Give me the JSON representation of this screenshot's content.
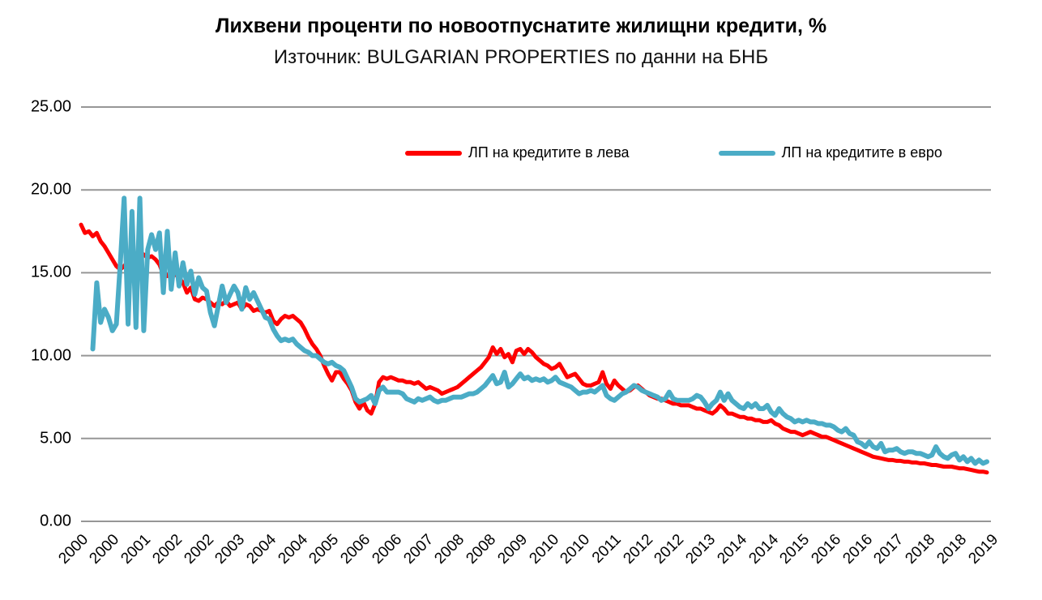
{
  "title": "Лихвени проценти по новоотпуснатите жилищни кредити, %",
  "subtitle": "Източник: BULGARIAN PROPERTIES по данни на БНБ",
  "colors": {
    "series_bgn": "#fe0000",
    "series_eur": "#4bacc6",
    "gridline": "#969696",
    "text": "#000000",
    "background": "#ffffff"
  },
  "legend": [
    {
      "label": "ЛП на кредитите в лева",
      "color": "#fe0000"
    },
    {
      "label": "ЛП на кредитите в евро",
      "color": "#4bacc6"
    }
  ],
  "chart_data": {
    "type": "line",
    "title": "Лихвени проценти по новоотпуснатите жилищни кредити, %",
    "subtitle": "Източник: BULGARIAN PROPERTIES по данни на БНБ",
    "x_start": "2000-01",
    "x_frequency": "monthly",
    "x_tick_interval_months": 8,
    "x_tick_labels": [
      "2000",
      "2000",
      "2001",
      "2002",
      "2002",
      "2003",
      "2004",
      "2004",
      "2005",
      "2006",
      "2006",
      "2007",
      "2008",
      "2008",
      "2009",
      "2010",
      "2010",
      "2011",
      "2012",
      "2012",
      "2013",
      "2014",
      "2014",
      "2015",
      "2016",
      "2016",
      "2017",
      "2018",
      "2018",
      "2019"
    ],
    "y_tick_labels": [
      "25.00",
      "20.00",
      "15.00",
      "10.00",
      "5.00",
      "0.00"
    ],
    "ylim": [
      0,
      25
    ],
    "grid": "horizontal",
    "legend_position": "top-inside",
    "series": [
      {
        "name": "ЛП на кредитите в лева",
        "color": "#fe0000",
        "values": [
          17.9,
          17.4,
          17.5,
          17.2,
          17.4,
          16.9,
          16.6,
          16.2,
          15.8,
          15.4,
          15.2,
          15.4,
          15.7,
          15.8,
          15.6,
          15.9,
          16.1,
          15.9,
          16.0,
          15.8,
          15.5,
          14.9,
          14.8,
          15.1,
          14.9,
          14.7,
          14.4,
          13.8,
          14.1,
          13.4,
          13.3,
          13.5,
          13.4,
          13.2,
          13.0,
          13.2,
          13.1,
          13.3,
          13.0,
          13.1,
          13.2,
          12.8,
          13.1,
          13.0,
          12.7,
          12.8,
          12.7,
          12.6,
          12.7,
          12.1,
          11.9,
          12.2,
          12.4,
          12.3,
          12.4,
          12.2,
          12.0,
          11.6,
          11.1,
          10.7,
          10.4,
          10.0,
          9.4,
          8.9,
          8.5,
          9.0,
          9.0,
          8.6,
          8.3,
          7.9,
          7.2,
          6.8,
          7.2,
          6.7,
          6.5,
          7.1,
          8.4,
          8.7,
          8.6,
          8.7,
          8.6,
          8.5,
          8.5,
          8.4,
          8.4,
          8.3,
          8.4,
          8.2,
          8.0,
          8.1,
          8.0,
          7.9,
          7.7,
          7.8,
          7.9,
          8.0,
          8.1,
          8.3,
          8.5,
          8.7,
          8.9,
          9.1,
          9.3,
          9.6,
          9.9,
          10.5,
          10.1,
          10.4,
          9.9,
          10.1,
          9.6,
          10.3,
          10.4,
          10.1,
          10.4,
          10.2,
          9.9,
          9.7,
          9.5,
          9.4,
          9.2,
          9.3,
          9.5,
          9.1,
          8.7,
          8.8,
          8.9,
          8.6,
          8.3,
          8.2,
          8.2,
          8.3,
          8.4,
          9.0,
          8.3,
          8.0,
          8.5,
          8.2,
          8.0,
          7.8,
          7.9,
          8.1,
          8.2,
          8.0,
          7.8,
          7.6,
          7.5,
          7.4,
          7.4,
          7.3,
          7.2,
          7.1,
          7.1,
          7.0,
          7.0,
          7.0,
          6.9,
          6.8,
          6.8,
          6.7,
          6.6,
          6.5,
          6.7,
          7.0,
          6.8,
          6.5,
          6.5,
          6.4,
          6.3,
          6.3,
          6.2,
          6.2,
          6.1,
          6.1,
          6.0,
          6.0,
          6.1,
          5.9,
          5.8,
          5.6,
          5.5,
          5.4,
          5.4,
          5.3,
          5.2,
          5.3,
          5.4,
          5.3,
          5.2,
          5.1,
          5.1,
          5.0,
          4.9,
          4.8,
          4.7,
          4.6,
          4.5,
          4.4,
          4.3,
          4.2,
          4.1,
          4.0,
          3.9,
          3.85,
          3.8,
          3.75,
          3.7,
          3.7,
          3.65,
          3.65,
          3.6,
          3.6,
          3.55,
          3.55,
          3.5,
          3.5,
          3.45,
          3.4,
          3.4,
          3.35,
          3.3,
          3.3,
          3.3,
          3.25,
          3.2,
          3.2,
          3.15,
          3.1,
          3.05,
          3.0,
          3.0,
          2.95
        ]
      },
      {
        "name": "ЛП на кредитите в евро",
        "color": "#4bacc6",
        "values": [
          null,
          null,
          null,
          10.4,
          14.4,
          12.0,
          12.8,
          12.3,
          11.5,
          11.9,
          15.5,
          19.5,
          11.9,
          18.7,
          11.7,
          19.5,
          11.5,
          16.4,
          17.3,
          16.4,
          17.4,
          13.8,
          17.5,
          14.0,
          16.2,
          14.2,
          15.6,
          14.3,
          15.1,
          13.7,
          14.7,
          14.1,
          13.9,
          12.6,
          11.8,
          13.0,
          14.2,
          13.2,
          13.7,
          14.2,
          13.8,
          12.8,
          14.1,
          13.4,
          13.8,
          13.3,
          12.8,
          12.3,
          12.2,
          11.6,
          11.2,
          10.9,
          11.0,
          10.9,
          11.0,
          10.7,
          10.5,
          10.3,
          10.2,
          10.0,
          10.0,
          9.8,
          9.6,
          9.5,
          9.6,
          9.4,
          9.3,
          9.1,
          8.6,
          8.1,
          7.4,
          7.2,
          7.3,
          7.4,
          7.6,
          7.1,
          7.9,
          8.1,
          7.8,
          7.8,
          7.8,
          7.8,
          7.7,
          7.4,
          7.3,
          7.2,
          7.4,
          7.3,
          7.4,
          7.5,
          7.3,
          7.2,
          7.3,
          7.3,
          7.4,
          7.5,
          7.5,
          7.5,
          7.6,
          7.7,
          7.7,
          7.8,
          8.0,
          8.2,
          8.5,
          8.8,
          8.3,
          8.4,
          9.0,
          8.1,
          8.3,
          8.6,
          8.9,
          8.6,
          8.7,
          8.5,
          8.6,
          8.5,
          8.6,
          8.4,
          8.5,
          8.7,
          8.4,
          8.3,
          8.2,
          8.1,
          7.9,
          7.7,
          7.8,
          7.8,
          7.9,
          7.8,
          8.0,
          8.2,
          7.6,
          7.4,
          7.3,
          7.5,
          7.7,
          7.8,
          8.0,
          8.2,
          8.1,
          7.9,
          7.8,
          7.7,
          7.6,
          7.5,
          7.3,
          7.4,
          7.8,
          7.4,
          7.3,
          7.3,
          7.3,
          7.3,
          7.4,
          7.6,
          7.5,
          7.2,
          6.8,
          7.1,
          7.3,
          7.8,
          7.3,
          7.7,
          7.3,
          7.1,
          6.9,
          6.8,
          7.1,
          6.9,
          7.1,
          6.8,
          6.8,
          7.0,
          6.6,
          6.4,
          6.8,
          6.5,
          6.3,
          6.2,
          6.0,
          6.1,
          6.0,
          6.1,
          6.0,
          6.0,
          5.9,
          5.9,
          5.8,
          5.8,
          5.7,
          5.5,
          5.4,
          5.6,
          5.3,
          5.2,
          4.8,
          4.7,
          4.5,
          4.8,
          4.5,
          4.4,
          4.7,
          4.2,
          4.3,
          4.3,
          4.4,
          4.2,
          4.1,
          4.2,
          4.2,
          4.1,
          4.1,
          4.0,
          3.9,
          4.0,
          4.5,
          4.1,
          3.9,
          3.8,
          4.0,
          4.1,
          3.7,
          3.9,
          3.6,
          3.8,
          3.5,
          3.7,
          3.5,
          3.6
        ]
      }
    ]
  }
}
